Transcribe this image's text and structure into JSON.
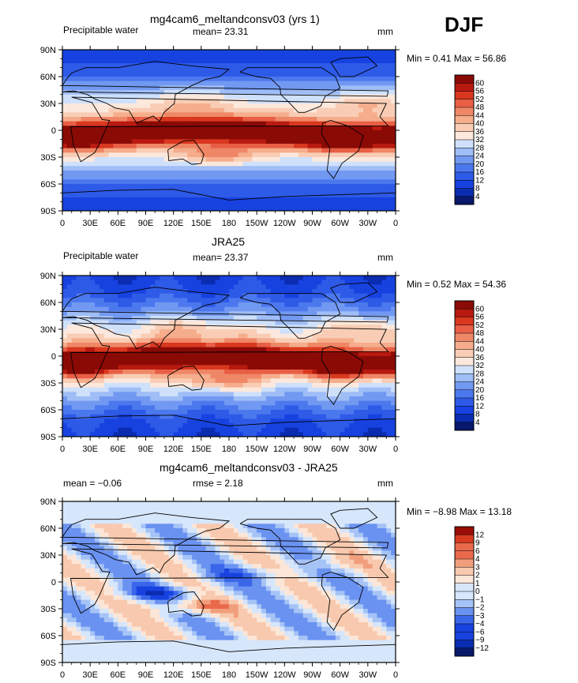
{
  "season_label": "DJF",
  "lat_ticks": [
    "90N",
    "60N",
    "30N",
    "0",
    "30S",
    "60S",
    "90S"
  ],
  "lon_ticks": [
    "0",
    "30E",
    "60E",
    "90E",
    "120E",
    "150E",
    "180",
    "150W",
    "120W",
    "90W",
    "60W",
    "30W",
    "0"
  ],
  "colors": {
    "abs_palette": [
      "#08186b",
      "#0a2cb0",
      "#1742e0",
      "#2e5ae8",
      "#4c78ee",
      "#7299f2",
      "#9fbdf6",
      "#cfe0fb",
      "#fce8dc",
      "#f9cdb5",
      "#f5ad8c",
      "#ef8766",
      "#e85f45",
      "#d9381f",
      "#b81a10",
      "#8a0a06"
    ],
    "diff_palette": [
      "#08186b",
      "#0a2cb0",
      "#1742e0",
      "#3a66ea",
      "#6a92f1",
      "#a6c3f6",
      "#d6e6fb",
      "#fbe6d8",
      "#f8c9ae",
      "#f29e7c",
      "#e96a4b",
      "#d63b20",
      "#9a0c08"
    ]
  },
  "chart_data": [
    {
      "type": "heatmap",
      "title": "mg4cam6_meltandconsv03 (yrs 1)",
      "left_label": "Precipitable water",
      "center_label": "mean=   23.31",
      "right_label": "mm",
      "stats": "Min =    0.41  Max =   56.86",
      "xlim": [
        0,
        360
      ],
      "ylim": [
        -90,
        90
      ],
      "colorbar_levels": [
        "60",
        "56",
        "52",
        "48",
        "44",
        "40",
        "36",
        "32",
        "28",
        "24",
        "20",
        "16",
        "12",
        "8",
        "4"
      ],
      "min": 0.41,
      "max": 56.86,
      "mean": 23.31
    },
    {
      "type": "heatmap",
      "title": "JRA25",
      "left_label": "Precipitable water",
      "center_label": "mean=   23.37",
      "right_label": "mm",
      "stats": "Min =    0.52  Max =   54.36",
      "xlim": [
        0,
        360
      ],
      "ylim": [
        -90,
        90
      ],
      "colorbar_levels": [
        "60",
        "56",
        "52",
        "48",
        "44",
        "40",
        "36",
        "32",
        "28",
        "24",
        "20",
        "16",
        "12",
        "8",
        "4"
      ],
      "min": 0.52,
      "max": 54.36,
      "mean": 23.37
    },
    {
      "type": "heatmap",
      "title": "mg4cam6_meltandconsv03 - JRA25",
      "left_label": "mean =   −0.06",
      "center_label": "rmse =     2.18",
      "right_label": "mm",
      "stats": "Min =   −8.98  Max =   13.18",
      "xlim": [
        0,
        360
      ],
      "ylim": [
        -90,
        90
      ],
      "colorbar_levels": [
        "12",
        "9",
        "6",
        "4",
        "3",
        "2",
        "1",
        "0",
        "−1",
        "−2",
        "−3",
        "−4",
        "−6",
        "−9",
        "−12"
      ],
      "min": -8.98,
      "max": 13.18,
      "mean": -0.06,
      "rmse": 2.18
    }
  ]
}
